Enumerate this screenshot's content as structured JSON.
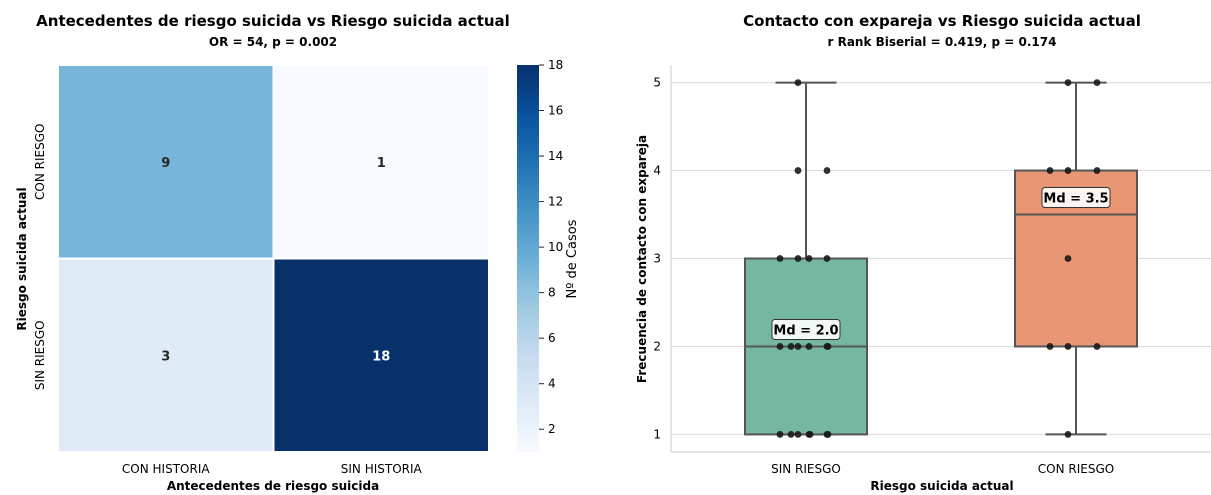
{
  "chart_data": [
    {
      "type": "heatmap",
      "title": "Antecedentes de riesgo suicida vs Riesgo suicida actual",
      "subtitle": "OR = 54, p = 0.002",
      "xlabel": "Antecedentes de riesgo suicida",
      "ylabel": "Riesgo suicida actual",
      "x_categories": [
        "CON HISTORIA",
        "SIN HISTORIA"
      ],
      "y_categories": [
        "CON RIESGO",
        "SIN RIESGO"
      ],
      "values": [
        [
          9,
          1
        ],
        [
          3,
          18
        ]
      ],
      "colorbar": {
        "label": "Nº de Casos",
        "range": [
          1,
          18
        ],
        "ticks": [
          "2",
          "4",
          "6",
          "8",
          "10",
          "12",
          "14",
          "16",
          "18"
        ],
        "colormap": "Blues"
      }
    },
    {
      "type": "box",
      "title": "Contacto con expareja vs Riesgo suicida actual",
      "subtitle": "r Rank Biserial = 0.419, p = 0.174",
      "xlabel": "Riesgo suicida actual",
      "ylabel": "Frecuencia de contacto con expareja",
      "ylim": [
        0.8,
        5.2
      ],
      "y_ticks": [
        "1",
        "2",
        "3",
        "4",
        "5"
      ],
      "grid": "horizontal",
      "categories": [
        "SIN RIESGO",
        "CON RIESGO"
      ],
      "boxes": [
        {
          "category": "SIN RIESGO",
          "min": 1,
          "q1": 1,
          "median": 2,
          "q3": 3,
          "max": 5,
          "median_label": "Md = 2.0",
          "color": "#76b7a2"
        },
        {
          "category": "CON RIESGO",
          "min": 1,
          "q1": 2,
          "median": 3.5,
          "q3": 4,
          "max": 5,
          "median_label": "Md = 3.5",
          "color": "#e99675"
        }
      ],
      "points": [
        {
          "category": "SIN RIESGO",
          "values": [
            5,
            4,
            4,
            3,
            3,
            3,
            3,
            2,
            2,
            2,
            2,
            2,
            2,
            1,
            1,
            1,
            1,
            1,
            1,
            1
          ]
        },
        {
          "category": "CON RIESGO",
          "values": [
            5,
            5,
            4,
            4,
            4,
            3,
            2,
            2,
            2,
            1
          ]
        }
      ]
    }
  ]
}
